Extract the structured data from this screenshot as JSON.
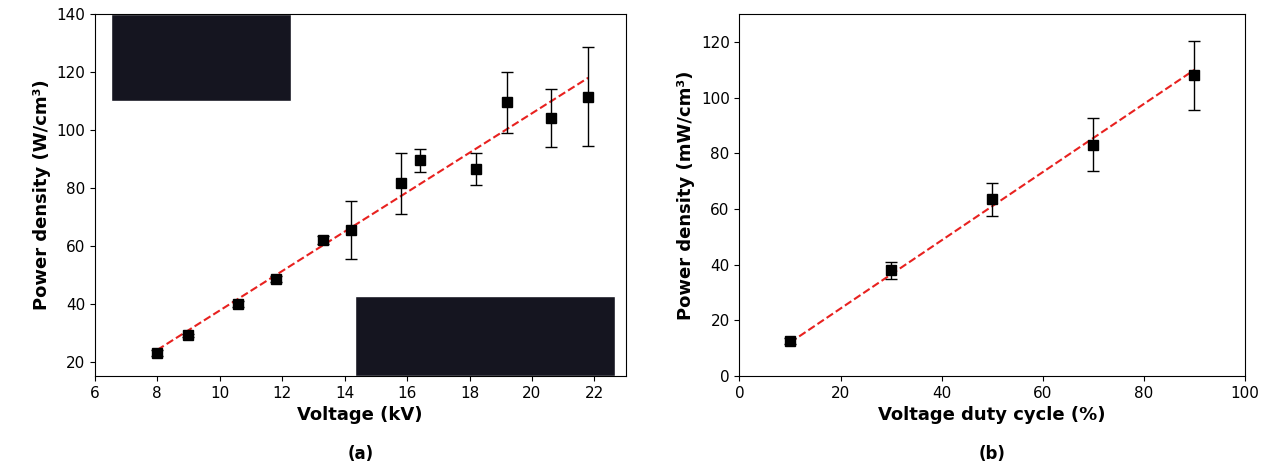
{
  "chart_data": [
    {
      "type": "scatter",
      "title": "(a)",
      "x_label": "Voltage (kV)",
      "y_label": "Power density (W/cm³)",
      "x": [
        8,
        9,
        10.6,
        11.8,
        13.3,
        14.2,
        15.8,
        16.4,
        18.2,
        19.2,
        20.6,
        21.8
      ],
      "values": [
        23,
        29,
        40,
        48.5,
        62,
        65.5,
        81.5,
        89.5,
        86.5,
        109.5,
        104,
        111.5
      ],
      "errors": [
        1,
        0.5,
        1,
        1,
        1.5,
        10,
        10.5,
        4,
        5.5,
        10.5,
        10,
        17
      ],
      "color": "#000000",
      "marker": "square",
      "fit": {
        "x": [
          8,
          21.8
        ],
        "values": [
          24,
          118
        ],
        "color": "#e8211f",
        "line_style": "dashed"
      },
      "xlim": [
        6,
        23
      ],
      "xticks": [
        6,
        8,
        10,
        12,
        14,
        16,
        18,
        20,
        22
      ],
      "ylim": [
        15,
        140
      ],
      "yticks": [
        20,
        40,
        60,
        80,
        100,
        120,
        140
      ]
    },
    {
      "type": "scatter",
      "title": "(b)",
      "x_label": "Voltage duty cycle (%)",
      "y_label": "Power density (mW/cm³)",
      "x": [
        10,
        30,
        50,
        70,
        90
      ],
      "values": [
        12.5,
        38,
        63.5,
        83,
        108
      ],
      "errors": [
        1,
        3,
        6,
        9.5,
        12.5
      ],
      "color": "#000000",
      "marker": "square",
      "fit": {
        "x": [
          10,
          90
        ],
        "values": [
          12,
          110
        ],
        "color": "#e8211f",
        "line_style": "dashed"
      },
      "xlim": [
        0,
        100
      ],
      "xticks": [
        0,
        20,
        40,
        60,
        80,
        100
      ],
      "ylim": [
        0,
        130
      ],
      "yticks": [
        0,
        20,
        40,
        60,
        80,
        100,
        120
      ]
    }
  ]
}
